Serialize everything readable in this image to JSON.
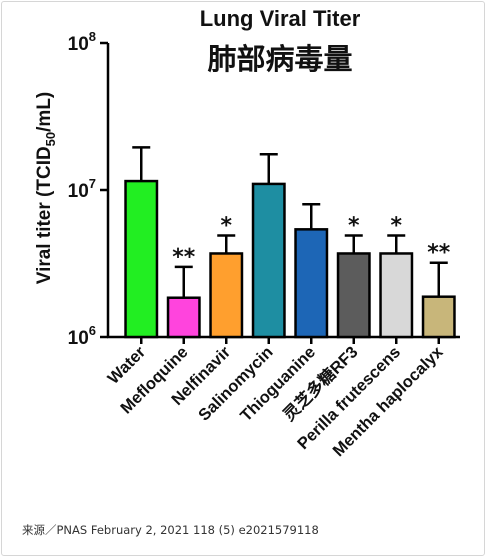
{
  "chart_data": {
    "type": "bar",
    "title": "Lung Viral Titer",
    "subtitle": "肺部病毒量",
    "ylabel": "Viral titer (TCID50/mL)",
    "yscale": "log",
    "ylim": [
      1000000,
      100000000
    ],
    "yticks": [
      {
        "value": 1000000,
        "base": "10",
        "exp": "6"
      },
      {
        "value": 10000000,
        "base": "10",
        "exp": "7"
      },
      {
        "value": 100000000,
        "base": "10",
        "exp": "8"
      }
    ],
    "categories": [
      "Water",
      "Mefloquine",
      "Nelfinavir",
      "Salinomycin",
      "Thioguanine",
      "灵芝多糖RF3",
      "Perilla frutescens",
      "Mentha haplocalyx"
    ],
    "values": [
      11500000,
      1850000,
      3700000,
      11000000,
      5400000,
      3700000,
      3700000,
      1880000
    ],
    "error_upper": [
      19500000,
      3000000,
      4900000,
      17500000,
      8000000,
      4900000,
      4900000,
      3200000
    ],
    "significance": [
      "",
      "**",
      "*",
      "",
      "",
      "*",
      "*",
      "**"
    ],
    "colors": [
      "#22ee22",
      "#ff44dd",
      "#ff9f2e",
      "#1e8ea2",
      "#1d66b6",
      "#5c5c5c",
      "#d8d8d8",
      "#c8b67a"
    ],
    "grid": false,
    "legend": "none"
  },
  "source": "来源／PNAS February 2, 2021 118 (5) e2021579118"
}
